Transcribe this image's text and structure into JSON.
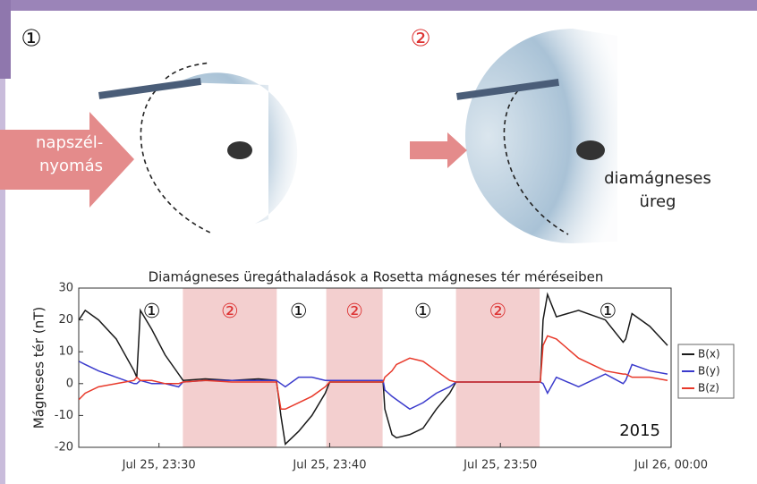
{
  "diagram": {
    "panel_labels": [
      "①",
      "②"
    ],
    "arrow_label": [
      "napszél-",
      "nyomás"
    ],
    "cavity_label": [
      "diamágneses",
      "üreg"
    ]
  },
  "chart_data": {
    "type": "line",
    "title": "Diamágneses üregáthaladások a Rosetta mágneses tér méréseiben",
    "ylabel": "Mágneses tér (nT)",
    "annotation": "2015",
    "x": [
      25.31,
      25.68,
      26.46,
      27.5,
      28.54,
      28.7,
      28.91,
      29.58,
      30.36,
      31.15,
      31.41,
      32.71,
      34.27,
      35.83,
      36.88,
      37.14,
      37.4,
      38.18,
      38.96,
      39.74,
      40.0,
      41.56,
      43.13,
      43.23,
      43.65,
      43.91,
      44.69,
      45.47,
      46.25,
      47.03,
      47.4,
      49.9,
      52.34,
      52.5,
      52.76,
      53.28,
      54.58,
      56.15,
      57.19,
      57.34,
      57.71,
      58.75,
      59.79
    ],
    "series": [
      {
        "name": "B(x)",
        "color": "#1a1a1a",
        "values": [
          20,
          23,
          20,
          14,
          4,
          2,
          23,
          17,
          9,
          3,
          1,
          1.5,
          1,
          1.5,
          1,
          -10,
          -19,
          -15,
          -10,
          -3,
          0.5,
          0.5,
          0.5,
          -8,
          -16,
          -17,
          -16,
          -14,
          -8,
          -3,
          0.5,
          0.5,
          0.5,
          20,
          28,
          21,
          23,
          20,
          13,
          14,
          22,
          18,
          12
        ]
      },
      {
        "name": "B(y)",
        "color": "#3a3acc",
        "values": [
          7,
          6,
          4,
          2,
          0,
          0,
          1,
          0,
          0,
          -1,
          0.5,
          1,
          1,
          1,
          1,
          0,
          -1,
          2,
          2,
          1,
          1,
          1,
          1,
          -2,
          -4,
          -5,
          -8,
          -6,
          -3,
          -1,
          0.5,
          0.5,
          0.5,
          0,
          -3,
          2,
          -1,
          3,
          0,
          1,
          6,
          4,
          3
        ]
      },
      {
        "name": "B(z)",
        "color": "#e8392a",
        "values": [
          -5,
          -3,
          -1,
          0,
          1,
          2,
          1,
          1,
          0,
          0,
          0.5,
          1,
          0.5,
          0.5,
          0.5,
          -8,
          -8,
          -6,
          -4,
          -1,
          0.5,
          0.5,
          0.5,
          2,
          4,
          6,
          8,
          7,
          4,
          1,
          0.5,
          0.5,
          0.5,
          12,
          15,
          14,
          8,
          4,
          3,
          3,
          2,
          2,
          1
        ]
      }
    ],
    "shaded": [
      {
        "start": 31.4,
        "end": 36.9,
        "label": "②"
      },
      {
        "start": 39.8,
        "end": 43.1,
        "label": "②"
      },
      {
        "start": 47.4,
        "end": 52.3,
        "label": "②"
      }
    ],
    "region_labels": [
      {
        "x": 29.58,
        "label": "①"
      },
      {
        "x": 38.18,
        "label": "①"
      },
      {
        "x": 45.47,
        "label": "①"
      },
      {
        "x": 56.3,
        "label": "①"
      }
    ],
    "shade_color": "#f3cfcf",
    "xlim": [
      25.3,
      60
    ],
    "xticks": [
      {
        "value": 30,
        "label": "Jul 25, 23:30"
      },
      {
        "value": 40,
        "label": "Jul 25, 23:40"
      },
      {
        "value": 50,
        "label": "Jul 25, 23:50"
      },
      {
        "value": 60,
        "label": "Jul 26, 00:00"
      }
    ],
    "ylim": [
      -20,
      30
    ],
    "yticks": [
      -20,
      -10,
      0,
      10,
      20,
      30
    ],
    "legend": "right"
  }
}
